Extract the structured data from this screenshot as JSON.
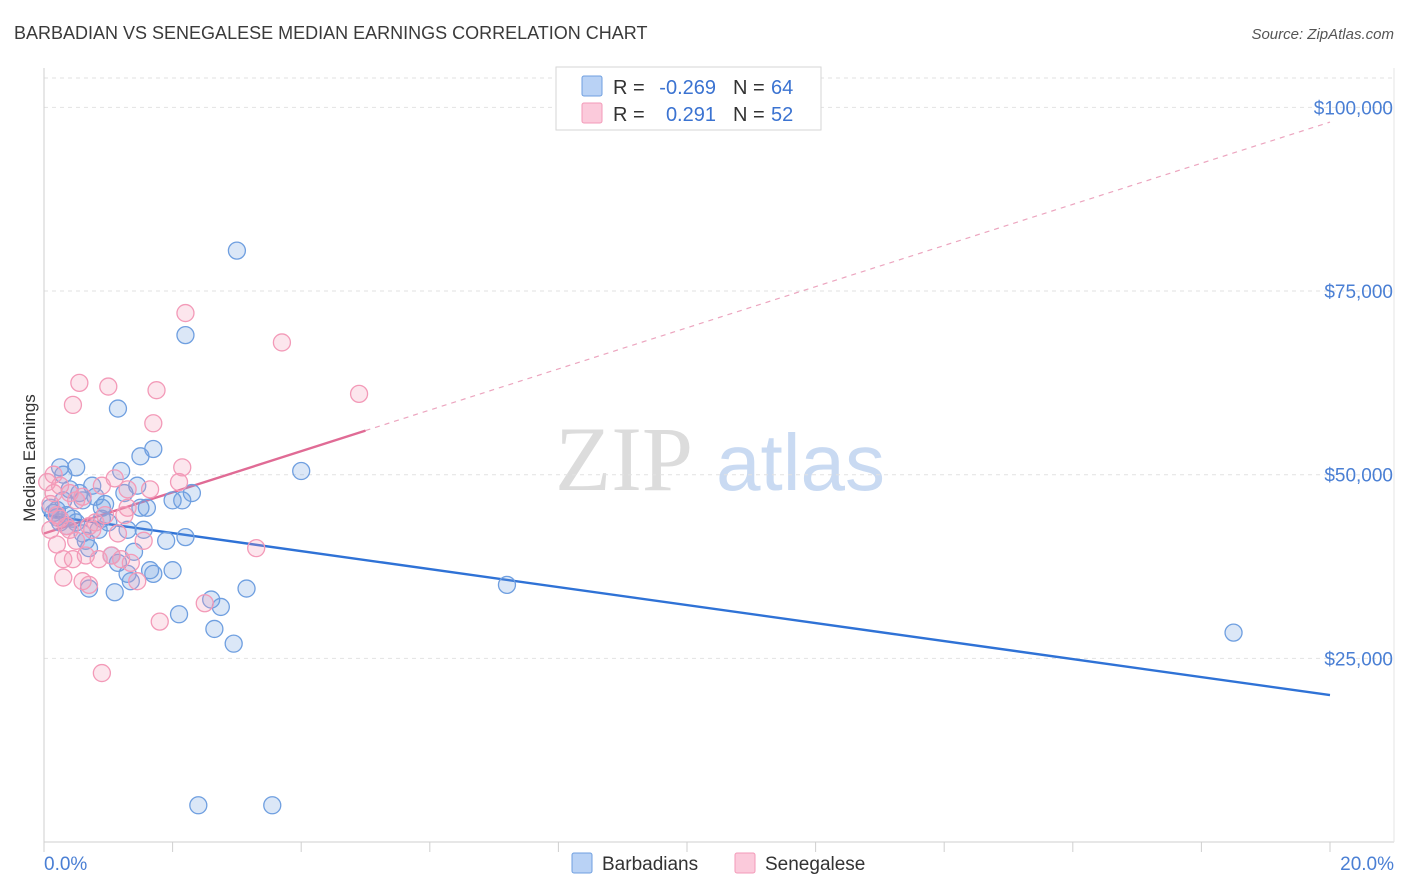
{
  "chart_data": {
    "type": "scatter",
    "title": "BARBADIAN VS SENEGALESE MEDIAN EARNINGS CORRELATION CHART",
    "source": "Source: ZipAtlas.com",
    "watermark": {
      "zip": "ZIP",
      "atlas": "atlas"
    },
    "ylabel": "Median Earnings",
    "xlim": [
      0,
      20
    ],
    "ylim": [
      0,
      104000
    ],
    "xtick_labels": {
      "left": "0.0%",
      "right": "20.0%"
    },
    "yticks": [
      {
        "value": 25000,
        "label": "$25,000"
      },
      {
        "value": 50000,
        "label": "$50,000"
      },
      {
        "value": 75000,
        "label": "$75,000"
      },
      {
        "value": 100000,
        "label": "$100,000"
      }
    ],
    "legend": [
      {
        "r_label": "R =",
        "r_value": "-0.269",
        "n_label": "N =",
        "n_value": "64"
      },
      {
        "r_label": "R =",
        "r_value": "0.291",
        "n_label": "N =",
        "n_value": "52"
      }
    ],
    "series": [
      {
        "name": "Barbadians",
        "color": "#6f9fe0",
        "line_color": "#2f72d6",
        "trend": {
          "x0": 0,
          "y0": 44500,
          "x1": 20,
          "y1": 20000,
          "dashed_to": null
        },
        "points": [
          [
            0.1,
            45500
          ],
          [
            0.15,
            44800
          ],
          [
            0.2,
            45200
          ],
          [
            0.2,
            44200
          ],
          [
            0.25,
            43500
          ],
          [
            0.3,
            46500
          ],
          [
            0.25,
            51000
          ],
          [
            0.3,
            50000
          ],
          [
            0.35,
            44500
          ],
          [
            0.4,
            48000
          ],
          [
            0.45,
            44000
          ],
          [
            0.5,
            43500
          ],
          [
            0.5,
            51000
          ],
          [
            0.55,
            47500
          ],
          [
            0.6,
            46500
          ],
          [
            0.6,
            42000
          ],
          [
            0.65,
            41000
          ],
          [
            0.7,
            40000
          ],
          [
            0.7,
            34500
          ],
          [
            0.75,
            48500
          ],
          [
            0.8,
            47000
          ],
          [
            0.85,
            42500
          ],
          [
            0.9,
            44000
          ],
          [
            0.95,
            46000
          ],
          [
            1.0,
            43500
          ],
          [
            1.05,
            39000
          ],
          [
            1.1,
            34000
          ],
          [
            1.15,
            38000
          ],
          [
            1.2,
            50500
          ],
          [
            1.25,
            47500
          ],
          [
            1.3,
            42500
          ],
          [
            1.3,
            36500
          ],
          [
            1.35,
            35500
          ],
          [
            1.4,
            39500
          ],
          [
            1.45,
            48500
          ],
          [
            1.5,
            52500
          ],
          [
            1.5,
            45500
          ],
          [
            1.55,
            42500
          ],
          [
            1.6,
            45500
          ],
          [
            1.65,
            37000
          ],
          [
            1.7,
            36500
          ],
          [
            1.7,
            53500
          ],
          [
            1.9,
            41000
          ],
          [
            2.0,
            46500
          ],
          [
            2.0,
            37000
          ],
          [
            2.1,
            31000
          ],
          [
            2.15,
            46500
          ],
          [
            2.2,
            41500
          ],
          [
            2.2,
            69000
          ],
          [
            2.3,
            47500
          ],
          [
            2.4,
            5000
          ],
          [
            2.6,
            33000
          ],
          [
            2.65,
            29000
          ],
          [
            2.75,
            32000
          ],
          [
            2.95,
            27000
          ],
          [
            3.0,
            80500
          ],
          [
            3.15,
            34500
          ],
          [
            3.55,
            5000
          ],
          [
            4.0,
            50500
          ],
          [
            7.2,
            35000
          ],
          [
            18.5,
            28500
          ],
          [
            1.15,
            59000
          ],
          [
            0.35,
            43000
          ],
          [
            0.9,
            45500
          ]
        ]
      },
      {
        "name": "Senegalese",
        "color": "#f39ab8",
        "line_color": "#e06b95",
        "trend": {
          "x0": 0,
          "y0": 42000,
          "x1": 5,
          "y1": 56000,
          "dashed_to": {
            "x": 20,
            "y": 98000
          }
        },
        "points": [
          [
            0.05,
            49000
          ],
          [
            0.1,
            46000
          ],
          [
            0.1,
            42500
          ],
          [
            0.15,
            50000
          ],
          [
            0.2,
            44500
          ],
          [
            0.25,
            48500
          ],
          [
            0.3,
            38500
          ],
          [
            0.3,
            36000
          ],
          [
            0.35,
            43000
          ],
          [
            0.4,
            47500
          ],
          [
            0.45,
            59500
          ],
          [
            0.45,
            38500
          ],
          [
            0.5,
            41000
          ],
          [
            0.5,
            46500
          ],
          [
            0.55,
            62500
          ],
          [
            0.6,
            35500
          ],
          [
            0.65,
            39000
          ],
          [
            0.7,
            35000
          ],
          [
            0.75,
            42500
          ],
          [
            0.8,
            43500
          ],
          [
            0.85,
            38500
          ],
          [
            0.9,
            23000
          ],
          [
            0.95,
            44500
          ],
          [
            1.0,
            62000
          ],
          [
            1.05,
            39000
          ],
          [
            1.1,
            49500
          ],
          [
            1.15,
            42000
          ],
          [
            1.2,
            38500
          ],
          [
            1.25,
            44500
          ],
          [
            1.3,
            45500
          ],
          [
            1.35,
            38000
          ],
          [
            1.45,
            35500
          ],
          [
            1.55,
            41000
          ],
          [
            1.65,
            48000
          ],
          [
            1.7,
            57000
          ],
          [
            1.75,
            61500
          ],
          [
            1.8,
            30000
          ],
          [
            2.1,
            49000
          ],
          [
            2.15,
            51000
          ],
          [
            2.2,
            72000
          ],
          [
            2.5,
            32500
          ],
          [
            3.3,
            40000
          ],
          [
            3.7,
            68000
          ],
          [
            4.9,
            61000
          ],
          [
            0.25,
            44000
          ],
          [
            0.6,
            47000
          ],
          [
            0.2,
            40500
          ],
          [
            0.7,
            43000
          ],
          [
            0.9,
            48500
          ],
          [
            1.3,
            48000
          ],
          [
            0.15,
            47500
          ],
          [
            0.4,
            42500
          ]
        ]
      }
    ]
  }
}
